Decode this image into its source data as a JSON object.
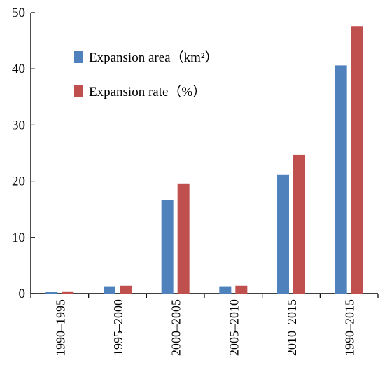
{
  "chart_data": {
    "type": "bar",
    "categories": [
      "1990–1995",
      "1995–2000",
      "2000–2005",
      "2005–2010",
      "2010–2015",
      "1990–2015"
    ],
    "series": [
      {
        "name": "Expansion area（km²）",
        "color": "#4f81bd",
        "values": [
          0.3,
          1.3,
          16.7,
          1.3,
          21.1,
          40.6
        ]
      },
      {
        "name": "Expansion rate（%）",
        "color": "#c0504d",
        "values": [
          0.4,
          1.4,
          19.6,
          1.4,
          24.7,
          47.6
        ]
      }
    ],
    "ylim": [
      0,
      50
    ],
    "yticks": [
      0,
      10,
      20,
      30,
      40,
      50
    ],
    "grid": false,
    "legend_position": "top-left"
  }
}
